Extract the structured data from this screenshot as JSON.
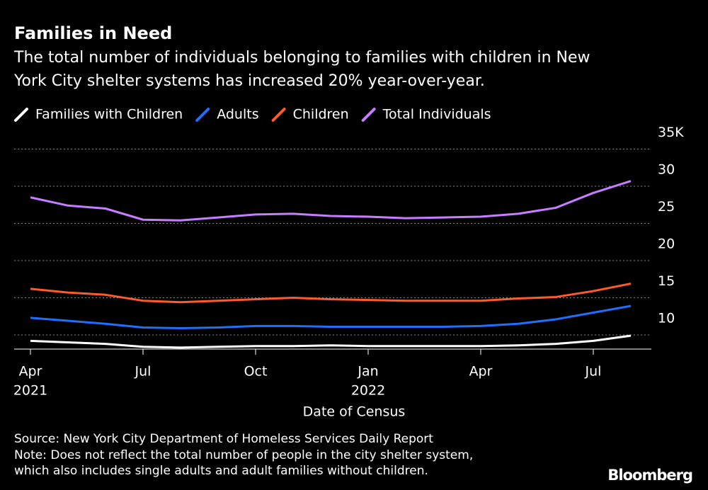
{
  "chart_data": {
    "type": "line",
    "title": "Families in Need",
    "subtitle": [
      "The total number of individuals belonging to families with children in New",
      "York City shelter systems has increased 20% year-over-year."
    ],
    "x_label": "Date of Census",
    "x": [
      "2021-04",
      "2021-05",
      "2021-06",
      "2021-07",
      "2021-08",
      "2021-09",
      "2021-10",
      "2021-11",
      "2021-12",
      "2022-01",
      "2022-02",
      "2022-03",
      "2022-04",
      "2022-05",
      "2022-06",
      "2022-07",
      "2022-08"
    ],
    "series": [
      {
        "name": "Families with Children",
        "color": "#ffffff",
        "values": [
          9.2,
          9.0,
          8.8,
          8.4,
          8.3,
          8.4,
          8.5,
          8.5,
          8.6,
          8.5,
          8.5,
          8.5,
          8.5,
          8.6,
          8.8,
          9.2,
          9.9
        ]
      },
      {
        "name": "Adults",
        "color": "#1f6fff",
        "values": [
          12.3,
          11.9,
          11.5,
          11.0,
          10.9,
          11.0,
          11.2,
          11.2,
          11.1,
          11.1,
          11.1,
          11.1,
          11.2,
          11.5,
          12.1,
          13.0,
          13.9
        ]
      },
      {
        "name": "Children",
        "color": "#ff5a2c",
        "values": [
          16.2,
          15.7,
          15.4,
          14.6,
          14.4,
          14.6,
          14.8,
          15.0,
          14.8,
          14.7,
          14.6,
          14.6,
          14.6,
          14.9,
          15.1,
          15.9,
          16.9
        ]
      },
      {
        "name": "Total Individuals",
        "color": "#c77dff",
        "values": [
          28.5,
          27.4,
          27.0,
          25.5,
          25.4,
          25.8,
          26.2,
          26.3,
          26.0,
          25.9,
          25.7,
          25.8,
          25.9,
          26.3,
          27.1,
          29.1,
          30.7
        ]
      }
    ],
    "xlim": [
      "2021-04",
      "2022-08"
    ],
    "xticks": [
      {
        "value": "2021-04",
        "label": "Apr"
      },
      {
        "value": "2021-07",
        "label": "Jul"
      },
      {
        "value": "2021-10",
        "label": "Oct"
      },
      {
        "value": "2022-01",
        "label": "Jan"
      },
      {
        "value": "2022-04",
        "label": "Apr"
      },
      {
        "value": "2022-07",
        "label": "Jul"
      }
    ],
    "year_labels": [
      {
        "value": "2021-04",
        "label": "2021"
      },
      {
        "value": "2022-01",
        "label": "2022"
      }
    ],
    "ylim": [
      8,
      35
    ],
    "yticks": [
      10,
      15,
      20,
      25,
      30,
      {
        "value": 35,
        "label": "35K"
      }
    ],
    "grid": true,
    "notes": [
      "Source: New York City Department of Homeless Services Daily Report",
      "Note: Does not reflect the total number of people in the city shelter system,",
      "which also includes single adults and adult families without children."
    ],
    "brand": "Bloomberg"
  }
}
